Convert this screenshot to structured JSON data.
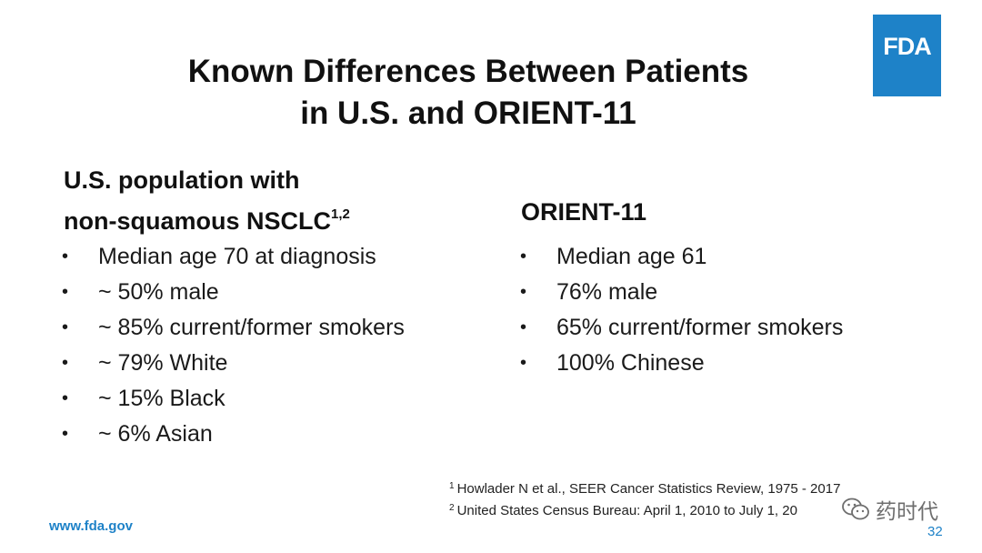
{
  "logo": {
    "text": "FDA",
    "color": "#1e82c8"
  },
  "title": {
    "line1": "Known Differences Between Patients",
    "line2": "in U.S. and ORIENT-11"
  },
  "left": {
    "heading_line1": "U.S. population with",
    "heading_line2": "non-squamous NSCLC",
    "heading_sup": "1,2",
    "bullets": [
      "Median age 70 at diagnosis",
      "~ 50% male",
      "~ 85% current/former smokers",
      "~ 79% White",
      "~ 15% Black",
      "~ 6% Asian"
    ]
  },
  "right": {
    "heading": "ORIENT-11",
    "bullets": [
      "Median age 61",
      "76% male",
      "65% current/former smokers",
      "100% Chinese"
    ]
  },
  "bullet_glyph": "•",
  "footnotes": [
    {
      "num": "1",
      "text": "Howlader N et al., SEER Cancer Statistics Review, 1975 - 2017"
    },
    {
      "num": "2",
      "text": "United States Census Bureau: April 1, 2010 to July 1, 20"
    }
  ],
  "footer": {
    "url": "www.fda.gov",
    "page": "32"
  },
  "watermark": {
    "text": "药时代",
    "icon": "wechat-icon"
  }
}
